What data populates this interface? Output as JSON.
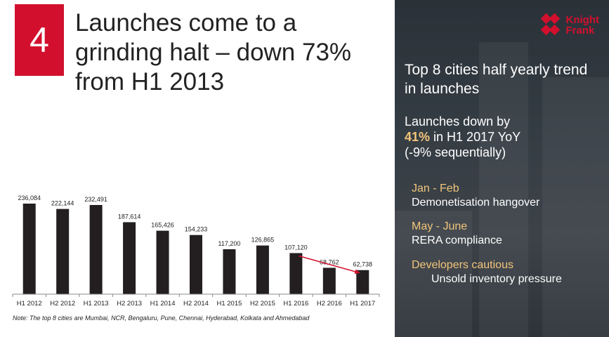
{
  "slide": {
    "number": "4",
    "title": "Launches come to a grinding halt – down 73% from H1 2013",
    "note": "Note: The top 8 cities are Mumbai, NCR, Bengaluru, Pune, Chennai, Hyderabad, Kolkata and Ahmedabad"
  },
  "logo": {
    "line1": "Knight",
    "line2": "Frank"
  },
  "sidebar": {
    "title": "Top 8 cities half yearly trend in launches",
    "sub_line1": "Launches down by",
    "sub_pct": "41%",
    "sub_line2": " in H1 2017 YoY",
    "sub_line3": "(-9% sequentially)",
    "points": [
      {
        "heading": "Jan - Feb",
        "detail": "Demonetisation hangover"
      },
      {
        "heading": "May - June",
        "detail": "RERA compliance"
      },
      {
        "heading": "Developers cautious",
        "detail": "Unsold inventory pressure"
      }
    ]
  },
  "colors": {
    "accent": "#d2102e",
    "bar": "#231f20",
    "highlight": "#f2c57a"
  },
  "chart_data": {
    "type": "bar",
    "categories": [
      "H1 2012",
      "H2 2012",
      "H1 2013",
      "H2 2013",
      "H1 2014",
      "H2 2014",
      "H1 2015",
      "H2 2015",
      "H1 2016",
      "H2 2016",
      "H1 2017"
    ],
    "values": [
      236084,
      222144,
      232491,
      187614,
      165426,
      154233,
      117200,
      126865,
      107120,
      68762,
      62738
    ],
    "data_labels": [
      "236,084",
      "222,144",
      "232,491",
      "187,614",
      "165,426",
      "154,233",
      "117,200",
      "126,865",
      "107,120",
      "68,762",
      "62,738"
    ],
    "title": "",
    "xlabel": "",
    "ylabel": "",
    "ylim": [
      0,
      250000
    ],
    "grid": false,
    "annotation": {
      "type": "arrow",
      "from_category": "H1 2016",
      "to_category": "H1 2017",
      "color": "#d2102e"
    }
  }
}
